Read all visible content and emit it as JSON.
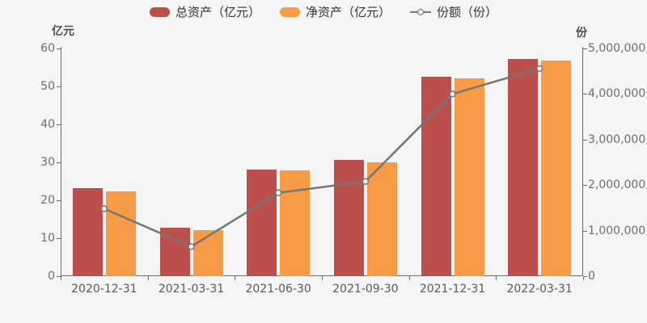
{
  "chart_data": {
    "type": "bar+line",
    "title": "",
    "categories": [
      "2020-12-31",
      "2021-03-31",
      "2021-06-30",
      "2021-09-30",
      "2021-12-31",
      "2022-03-31"
    ],
    "series": [
      {
        "name": "总资产（亿元）",
        "type": "bar",
        "axis": "left",
        "color": "#bc4f4b",
        "values": [
          23.1,
          12.8,
          28.0,
          30.7,
          52.5,
          57.2
        ]
      },
      {
        "name": "净资产（亿元）",
        "type": "bar",
        "axis": "left",
        "color": "#f79b46",
        "values": [
          22.4,
          12.2,
          27.8,
          30.1,
          52.1,
          56.8
        ]
      },
      {
        "name": "份额（份）",
        "type": "line",
        "axis": "right",
        "color": "#757575",
        "marker": "hollow-circle",
        "values": [
          1480000000,
          650000000,
          1830000000,
          2080000000,
          4000000000,
          4560000000
        ]
      }
    ],
    "left_axis": {
      "name": "亿元",
      "min": 0,
      "max": 60,
      "step": 10
    },
    "right_axis": {
      "name": "份",
      "min": 0,
      "max": 5000000000,
      "step": 1000000000,
      "tick_format": "thousands-comma",
      "labels_clipped_at_right_edge": true
    },
    "grid": false,
    "legend_position": "top-center",
    "background_color": "#f5f5f6"
  }
}
